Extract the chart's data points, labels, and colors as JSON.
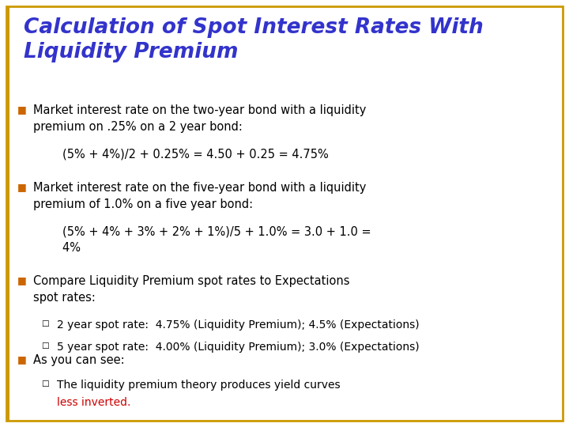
{
  "title_line1": "Calculation of Spot Interest Rates With",
  "title_line2": "Liquidity Premium",
  "title_color": "#3333CC",
  "background_color": "#FFFFFF",
  "border_color": "#CC9900",
  "bullet_color": "#CC6600",
  "text_color": "#000000",
  "red_color": "#CC0000",
  "bullet1_text": "Market interest rate on the two-year bond with a liquidity\npremium on .25% on a 2 year bond:",
  "bullet1_sub": "        (5% + 4%)/2 + 0.25% = 4.50 + 0.25 = 4.75%",
  "bullet2_text": "Market interest rate on the five-year bond with a liquidity\npremium of 1.0% on a five year bond:",
  "bullet2_sub": "        (5% + 4% + 3% + 2% + 1%)/5 + 1.0% = 3.0 + 1.0 =\n        4%",
  "bullet3_text": "Compare Liquidity Premium spot rates to Expectations\nspot rates:",
  "bullet3_sub1": "2 year spot rate:  4.75% (Liquidity Premium); 4.5% (Expectations)",
  "bullet3_sub2": "5 year spot rate:  4.00% (Liquidity Premium); 3.0% (Expectations)",
  "bullet4_text": "As you can see:",
  "bullet4_sub_black": "The liquidity premium theory produces yield curves",
  "bullet4_sub_red": "less inverted.",
  "figsize": [
    7.2,
    5.4
  ],
  "dpi": 100
}
